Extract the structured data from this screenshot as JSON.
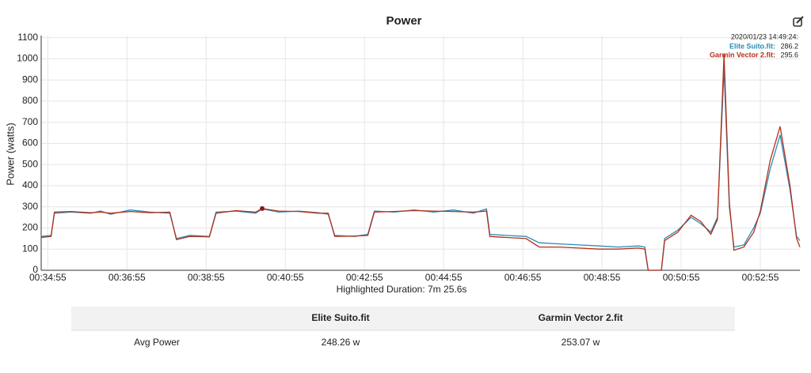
{
  "chart_data": {
    "type": "line",
    "title": "Power",
    "y_label": "Power (watts)",
    "x_label": "Highlighted Duration: 7m 25.6s",
    "x": [
      "00:34:45",
      "00:35:00",
      "00:35:05",
      "00:35:30",
      "00:36:00",
      "00:36:15",
      "00:36:30",
      "00:37:00",
      "00:37:30",
      "00:38:00",
      "00:38:10",
      "00:38:30",
      "00:39:00",
      "00:39:10",
      "00:39:40",
      "00:40:10",
      "00:40:20",
      "00:40:45",
      "00:41:15",
      "00:41:45",
      "00:42:00",
      "00:42:10",
      "00:42:40",
      "00:43:00",
      "00:43:10",
      "00:43:40",
      "00:44:10",
      "00:44:40",
      "00:45:10",
      "00:45:40",
      "00:46:00",
      "00:46:05",
      "00:46:30",
      "00:47:00",
      "00:47:20",
      "00:47:50",
      "00:48:20",
      "00:48:50",
      "00:49:20",
      "00:49:50",
      "00:50:00",
      "00:50:05",
      "00:50:25",
      "00:50:30",
      "00:50:50",
      "00:51:10",
      "00:51:25",
      "00:51:40",
      "00:51:50",
      "00:52:00",
      "00:52:08",
      "00:52:15",
      "00:52:30",
      "00:52:45",
      "00:52:55",
      "00:53:10",
      "00:53:25",
      "00:53:40",
      "00:53:50",
      "00:53:55"
    ],
    "series": [
      {
        "name": "Elite Suito.fit",
        "color": "#2b8cb5",
        "values": [
          160,
          165,
          270,
          275,
          270,
          280,
          265,
          285,
          275,
          270,
          150,
          165,
          160,
          275,
          280,
          270,
          290,
          275,
          280,
          272,
          265,
          165,
          160,
          170,
          280,
          275,
          285,
          275,
          285,
          270,
          290,
          170,
          165,
          160,
          130,
          125,
          120,
          115,
          110,
          115,
          110,
          0,
          0,
          150,
          190,
          250,
          220,
          180,
          250,
          950,
          300,
          110,
          120,
          200,
          270,
          480,
          640,
          380,
          160,
          140
        ]
      },
      {
        "name": "Garmin Vector 2.fit",
        "color": "#b5301c",
        "values": [
          155,
          160,
          275,
          278,
          272,
          275,
          270,
          278,
          272,
          275,
          145,
          160,
          158,
          270,
          282,
          275,
          292,
          280,
          278,
          270,
          270,
          160,
          162,
          165,
          275,
          278,
          282,
          280,
          278,
          275,
          280,
          160,
          155,
          150,
          110,
          110,
          105,
          100,
          100,
          105,
          100,
          0,
          0,
          140,
          180,
          260,
          230,
          170,
          240,
          1020,
          320,
          95,
          110,
          180,
          280,
          520,
          680,
          400,
          150,
          110
        ]
      }
    ],
    "xlim": [
      "00:34:45",
      "00:53:55"
    ],
    "xticks": [
      "00:34:55",
      "00:36:55",
      "00:38:55",
      "00:40:55",
      "00:42:55",
      "00:44:55",
      "00:46:55",
      "00:48:55",
      "00:50:55",
      "00:52:55"
    ],
    "ylim": [
      0,
      1110
    ],
    "yticks": [
      0,
      100,
      200,
      300,
      400,
      500,
      600,
      700,
      800,
      900,
      1000,
      1100
    ],
    "grid": true,
    "tooltip": {
      "time": "2020/01/23 14:49:24:",
      "entries": [
        {
          "label": "Elite Suito.fit:",
          "value": 286.2
        },
        {
          "label": "Garmin Vector 2.fit:",
          "value": 295.6
        }
      ]
    },
    "highlight": {
      "x": "00:40:20",
      "value": 292
    }
  },
  "table": {
    "header": [
      "Elite Suito.fit",
      "Garmin Vector 2.fit"
    ],
    "rows": [
      [
        "Avg Power",
        "248.26 w",
        "253.07 w"
      ]
    ]
  }
}
